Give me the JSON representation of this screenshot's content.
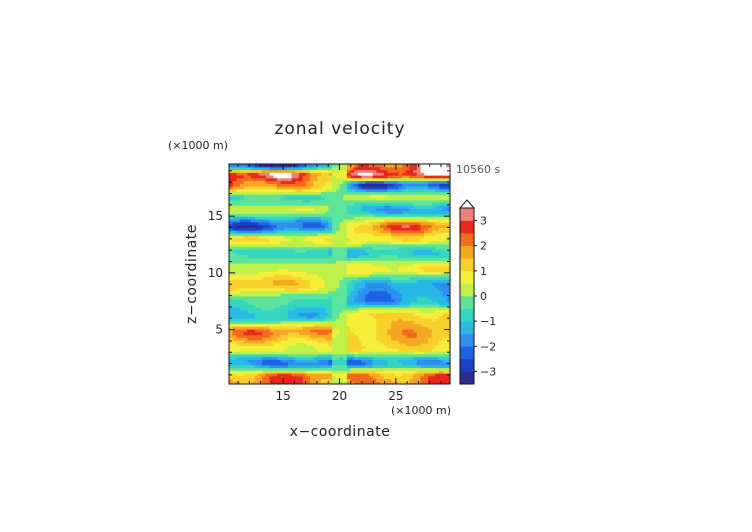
{
  "chart_data": {
    "type": "heatmap",
    "title": "zonal velocity",
    "xlabel": "x−coordinate",
    "ylabel": "z−coordinate",
    "x_unit": "(×1000 m)",
    "y_unit": "(×1000 m)",
    "time_label": "10560 s",
    "xlim": [
      10.2,
      29.8
    ],
    "ylim": [
      0.2,
      19.6
    ],
    "x_ticks": [
      15,
      20,
      25
    ],
    "y_ticks": [
      5,
      10,
      15
    ],
    "x_tick_labels": [
      "15",
      "20",
      "25"
    ],
    "y_tick_labels": [
      "5",
      "10",
      "15"
    ],
    "colorbar": {
      "levels": [
        -3.5,
        -3,
        -2.5,
        -2,
        -1.5,
        -1,
        -0.5,
        0,
        0.5,
        1,
        1.5,
        2,
        2.5,
        3,
        3.5
      ],
      "colors": [
        "#2a2c8e",
        "#1c3fc4",
        "#1f62e6",
        "#2f8ff0",
        "#29b8e6",
        "#35d6c0",
        "#5ee49a",
        "#bff04a",
        "#f4f03a",
        "#f8d22a",
        "#f5a623",
        "#f26b1c",
        "#e8281e",
        "#f0807a",
        "#f8c0c0"
      ],
      "over_color": "#ffffff",
      "tick_values": [
        3,
        2,
        1,
        0,
        -1,
        -2,
        -3
      ],
      "tick_labels": [
        "3",
        "2",
        "1",
        "0",
        "−1",
        "−2",
        "−3"
      ]
    },
    "field_bands": [
      {
        "z": 0.9,
        "west": 2.5,
        "east": 2.5
      },
      {
        "z": 2.1,
        "west": -2.5,
        "east": -2.0
      },
      {
        "z": 3.4,
        "west": 0.9,
        "east": 1.3
      },
      {
        "z": 4.8,
        "west": 2.3,
        "east": 1.8
      },
      {
        "z": 6.3,
        "west": -1.5,
        "east": 1.6
      },
      {
        "z": 7.6,
        "west": -0.6,
        "east": -2.0
      },
      {
        "z": 9.0,
        "west": 1.6,
        "east": -1.6
      },
      {
        "z": 10.4,
        "west": 0.4,
        "east": 1.1
      },
      {
        "z": 11.8,
        "west": -1.0,
        "east": -1.3
      },
      {
        "z": 13.0,
        "west": 1.2,
        "east": 1.0
      },
      {
        "z": 14.1,
        "west": -2.8,
        "east": 2.6
      },
      {
        "z": 15.6,
        "west": 0.5,
        "east": -2.0
      },
      {
        "z": 16.7,
        "west": -0.8,
        "east": 0.6
      },
      {
        "z": 17.8,
        "west": 2.6,
        "east": -3.0
      },
      {
        "z": 18.7,
        "west": 3.6,
        "east": 3.6
      },
      {
        "z": 19.5,
        "west": -3.0,
        "east": 3.3
      }
    ]
  }
}
